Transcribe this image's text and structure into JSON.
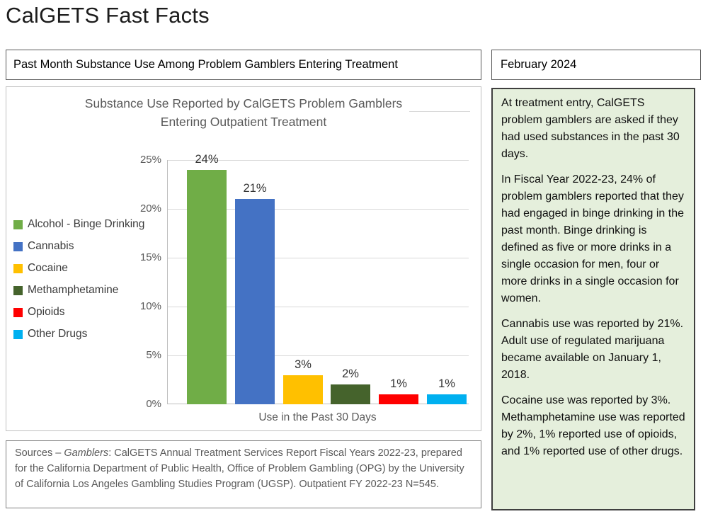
{
  "page": {
    "title": "CalGETS Fast Facts"
  },
  "header": {
    "subject": "Past Month Substance Use Among Problem Gamblers Entering Treatment",
    "date": "February 2024"
  },
  "chart_data": {
    "type": "bar",
    "title": "Substance Use Reported by CalGETS Problem Gamblers Entering Outpatient Treatment",
    "title_lines": [
      "Substance Use Reported by CalGETS Problem Gamblers",
      "Entering Outpatient Treatment"
    ],
    "categories": [
      "Alcohol - Binge Drinking",
      "Cannabis",
      "Cocaine",
      "Methamphetamine",
      "Opioids",
      "Other Drugs"
    ],
    "values": [
      24,
      21,
      3,
      2,
      1,
      1
    ],
    "value_labels": [
      "24%",
      "21%",
      "3%",
      "2%",
      "1%",
      "1%"
    ],
    "colors": [
      "#70AD47",
      "#4472C4",
      "#FFC000",
      "#45632C",
      "#FF0000",
      "#00B0F0"
    ],
    "xlabel": "Use in the Past 30 Days",
    "ylabel": "",
    "ylim": [
      0,
      25
    ],
    "yticks": [
      "0%",
      "5%",
      "10%",
      "15%",
      "20%",
      "25%"
    ],
    "grid": true,
    "legend_position": "left"
  },
  "sources": {
    "prefix": "Sources – ",
    "italic": "Gamblers",
    "rest": ": CalGETS Annual Treatment Services Report Fiscal Years 2022-23, prepared for the California Department of Public Health, Office of Problem Gambling (OPG) by the University of California Los Angeles Gambling Studies Program (UGSP). Outpatient FY 2022-23 N=545."
  },
  "sidebar": {
    "paragraphs": [
      "At treatment entry, CalGETS problem gamblers are asked if they had used substances in the past 30 days.",
      "In Fiscal Year 2022-23, 24% of problem gamblers reported that they had engaged in binge drinking in the past month. Binge drinking is defined as five or more drinks in a single occasion for men, four or more drinks in a single occasion for women.",
      "Cannabis use was reported by 21%. Adult use of regulated marijuana became available on January 1, 2018.",
      "Cocaine use was reported by 3%. Methamphetamine use was reported by 2%, 1% reported use of opioids, and 1% reported use of other drugs."
    ]
  }
}
